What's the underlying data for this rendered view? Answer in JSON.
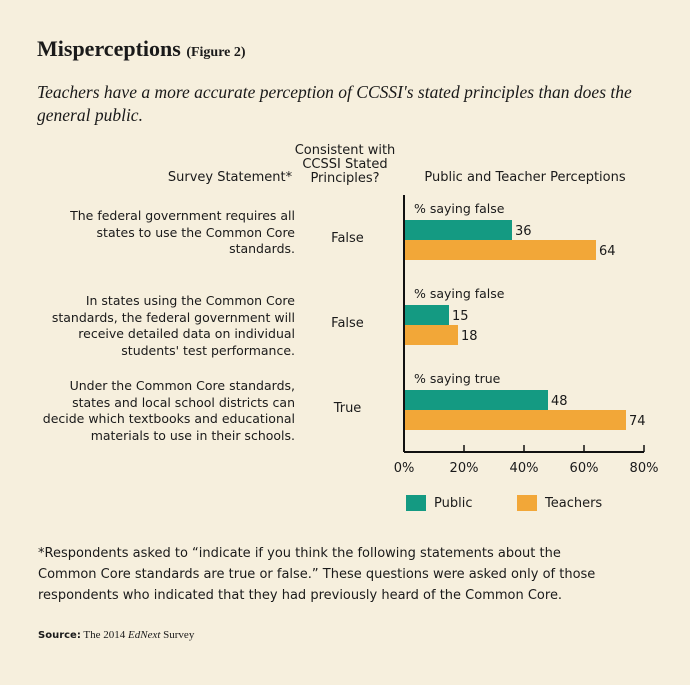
{
  "title": "Misperceptions",
  "figure_label": "(Figure 2)",
  "subtitle": "Teachers have a more accurate perception of CCSSI's stated principles than does the general public.",
  "headers": {
    "statement": "Survey Statement*",
    "consistent": "Consistent with CCSSI Stated Principles?",
    "perceptions": "Public and Teacher Perceptions"
  },
  "colors": {
    "public": "#149a82",
    "teachers": "#f2a738"
  },
  "chart_data": {
    "type": "bar",
    "orientation": "horizontal",
    "categories": [
      "The federal government requires all states to use the Common Core standards.",
      "In states using the Common Core standards, the federal government will receive detailed data on individual students' test performance.",
      "Under the Common Core standards, states and local school districts can decide which textbooks and educational materials to use in their schools."
    ],
    "consistent": [
      "False",
      "False",
      "True"
    ],
    "group_labels": [
      "% saying false",
      "% saying false",
      "% saying true"
    ],
    "series": [
      {
        "name": "Public",
        "values": [
          36,
          15,
          48
        ]
      },
      {
        "name": "Teachers",
        "values": [
          64,
          18,
          74
        ]
      }
    ],
    "xlim": [
      0,
      80
    ],
    "xticks": [
      "0%",
      "20%",
      "40%",
      "60%",
      "80%"
    ]
  },
  "footnote": "*Respondents asked to “indicate if you think the following statements about the\n Common Core standards are true or false.” These questions were asked only of those\nrespondents who indicated that they had previously heard of the Common Core.",
  "source": {
    "label": "Source:",
    "text_pre": "The 2014 ",
    "text_italic": "EdNext",
    "text_post": " Survey"
  }
}
